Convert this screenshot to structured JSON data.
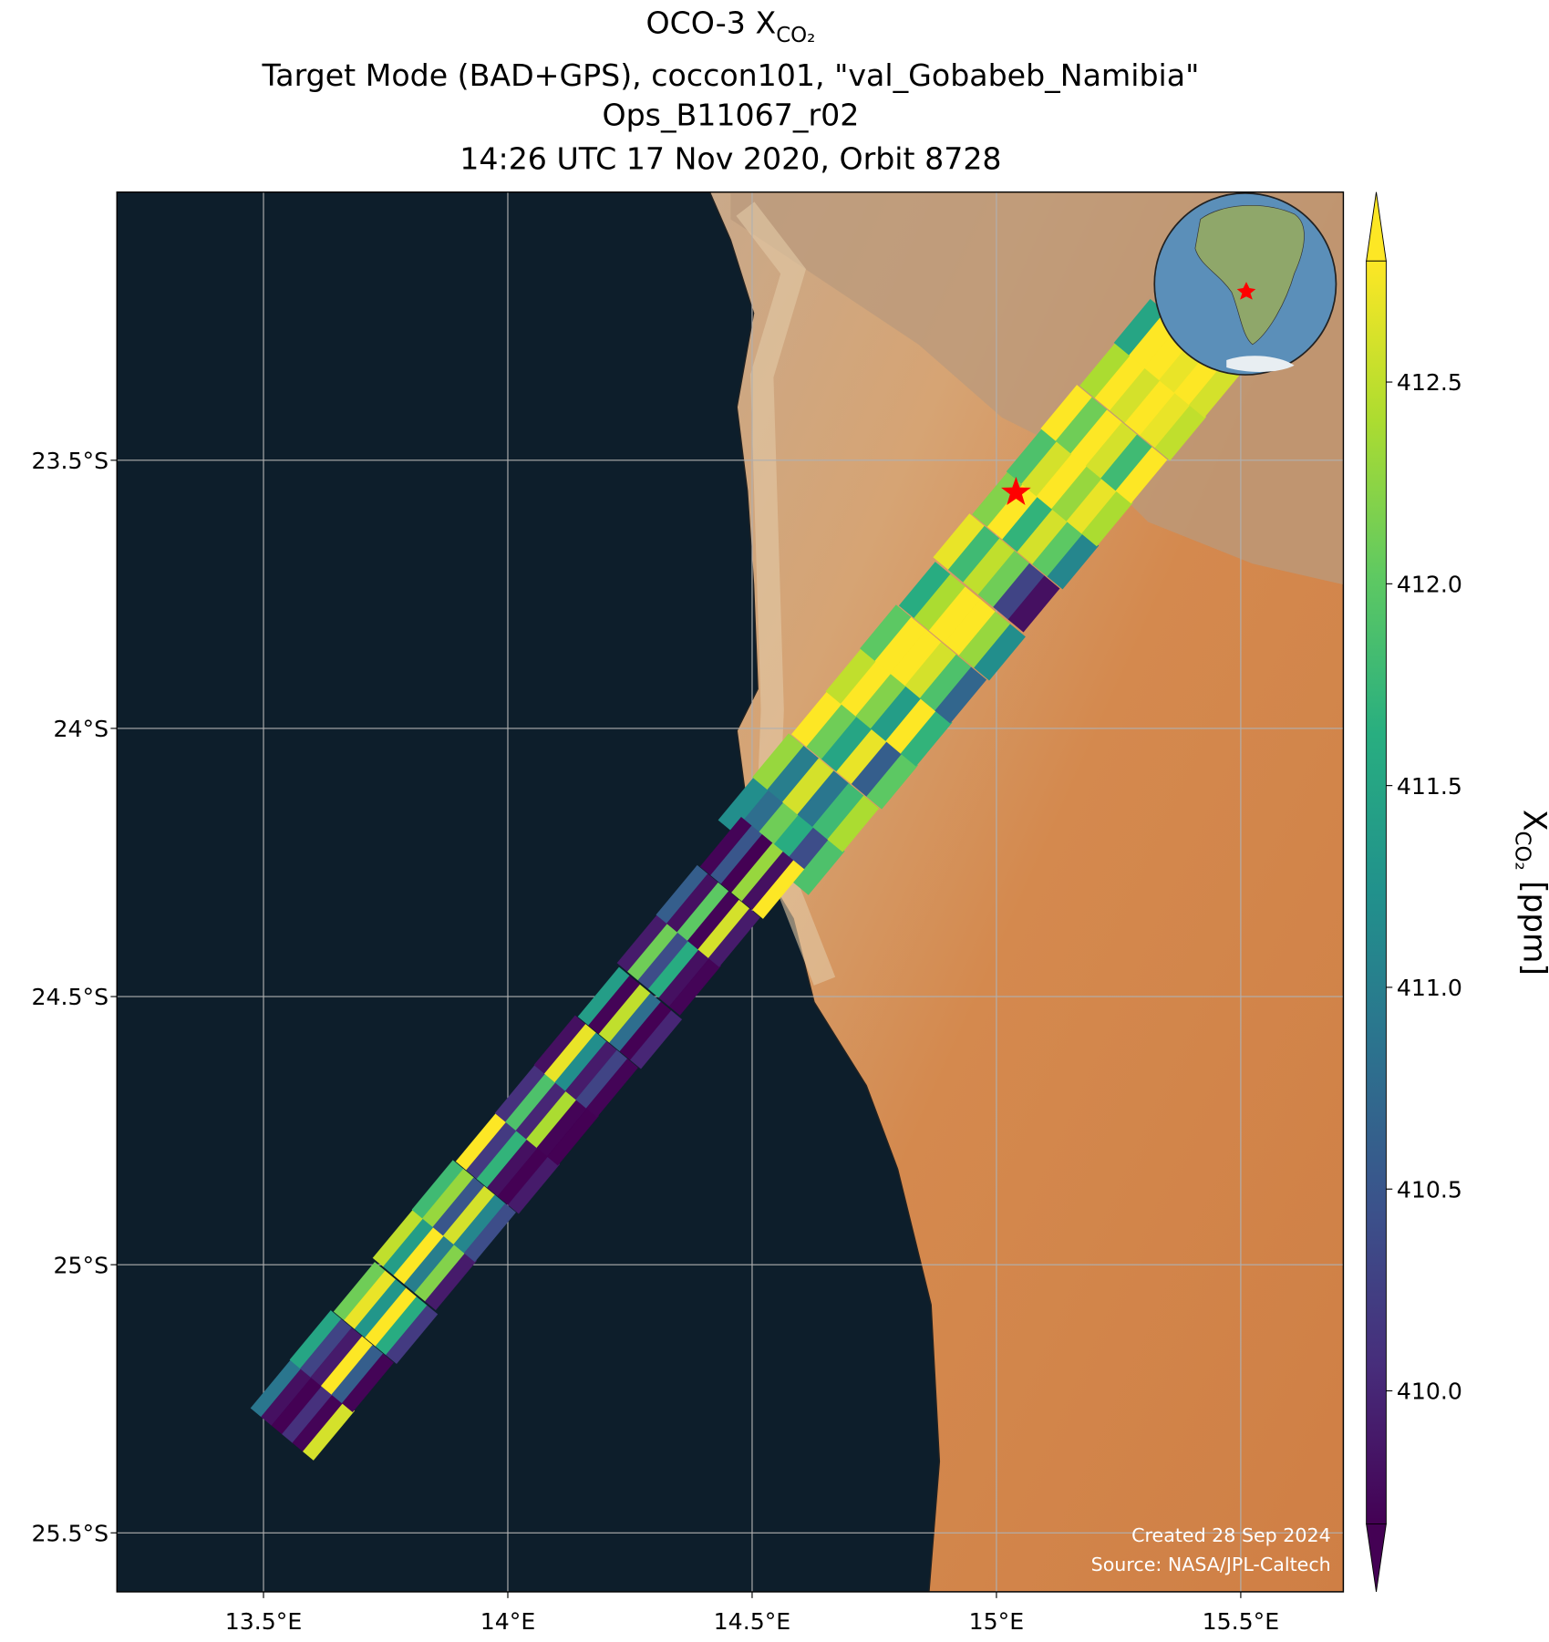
{
  "chart_data": {
    "type": "swath-map",
    "title": {
      "prefix": "OCO-3 X",
      "subscript": "CO₂"
    },
    "subtitle": [
      "Target Mode (BAD+GPS), coccon101, \"val_Gobabeb_Namibia\"",
      "Ops_B11067_r02",
      "14:26 UTC 17 Nov 2020, Orbit 8728"
    ],
    "xlim": [
      13.2,
      15.71
    ],
    "ylim": [
      -25.61,
      -23.0
    ],
    "xticks": [
      {
        "value": 13.5,
        "label": "13.5°E"
      },
      {
        "value": 14,
        "label": "14°E"
      },
      {
        "value": 14.5,
        "label": "14.5°E"
      },
      {
        "value": 15,
        "label": "15°E"
      },
      {
        "value": 15.5,
        "label": "15.5°E"
      }
    ],
    "yticks": [
      {
        "value": -23.5,
        "label": "23.5°S"
      },
      {
        "value": -24,
        "label": "24°S"
      },
      {
        "value": -24.5,
        "label": "24.5°S"
      },
      {
        "value": -25,
        "label": "25°S"
      },
      {
        "value": -25.5,
        "label": "25.5°S"
      }
    ],
    "grid": true,
    "colormap": "viridis",
    "vlim": [
      409.67,
      412.8
    ],
    "colorbar_ticks": [
      {
        "value": 410,
        "label": "410.0"
      },
      410.5,
      {
        "value": 411,
        "label": "411.0"
      },
      411.5,
      {
        "value": 412,
        "label": "412.0"
      },
      412.5
    ],
    "colorbar_label": {
      "symbol": "X",
      "subscript": "CO₂",
      "units": "[ppm]"
    },
    "site": {
      "lon": 15.04,
      "lat": -23.56,
      "color": "#ff0000"
    },
    "swaths": [
      {
        "x": [
          14.56,
          14.63,
          14.71,
          14.78,
          14.85,
          14.93,
          15.0,
          15.08,
          15.15,
          15.22,
          15.3,
          15.37
        ],
        "y": [
          -24.2,
          -24.12,
          -24.04,
          -23.96,
          -23.88,
          -23.8,
          -23.71,
          -23.63,
          -23.55,
          -23.47,
          -23.39,
          -23.31
        ],
        "values": [
          [
            411.2,
            410.8,
            412.1,
            411.6,
            410.4,
            411.9
          ],
          [
            412.3,
            411.0,
            412.6,
            410.9,
            411.8,
            412.4
          ],
          [
            412.8,
            412.1,
            411.5,
            412.7,
            410.6,
            412.0
          ],
          [
            412.5,
            412.9,
            412.2,
            411.4,
            412.8,
            411.7
          ],
          [
            412.0,
            412.8,
            412.9,
            412.6,
            411.9,
            410.7
          ],
          [
            411.6,
            412.4,
            412.8,
            412.9,
            412.3,
            411.2
          ],
          [
            412.7,
            411.8,
            412.5,
            412.1,
            410.3,
            409.8
          ],
          [
            412.2,
            412.9,
            411.7,
            412.6,
            412.0,
            411.1
          ],
          [
            411.9,
            412.6,
            412.8,
            412.3,
            412.7,
            412.4
          ],
          [
            412.8,
            412.1,
            412.9,
            412.6,
            411.8,
            412.9
          ],
          [
            412.4,
            412.9,
            412.6,
            412.8,
            412.7,
            412.5
          ],
          [
            411.5,
            412.8,
            412.9,
            412.7,
            412.9,
            412.6
          ]
        ]
      },
      {
        "x": [
          13.58,
          13.66,
          13.75,
          13.83,
          13.91,
          14.0,
          14.08,
          14.16,
          14.25,
          14.33,
          14.41,
          14.5
        ],
        "y": [
          -25.27,
          -25.18,
          -25.09,
          -24.99,
          -24.9,
          -24.81,
          -24.72,
          -24.63,
          -24.54,
          -24.44,
          -24.35,
          -24.26
        ],
        "values": [
          [
            410.9,
            409.8,
            409.6,
            410.1,
            409.7,
            412.6
          ],
          [
            411.5,
            410.3,
            409.9,
            412.8,
            410.6,
            409.7
          ],
          [
            412.1,
            412.7,
            411.3,
            412.9,
            411.6,
            410.2
          ],
          [
            412.5,
            411.4,
            412.8,
            411.0,
            412.2,
            409.9
          ],
          [
            411.8,
            412.3,
            410.5,
            412.6,
            411.1,
            410.4
          ],
          [
            412.9,
            410.2,
            411.7,
            409.8,
            409.6,
            409.9
          ],
          [
            410.1,
            411.9,
            410.0,
            412.4,
            409.7,
            409.6
          ],
          [
            409.8,
            412.7,
            411.2,
            409.9,
            410.3,
            409.7
          ],
          [
            411.4,
            409.7,
            412.5,
            410.8,
            409.6,
            410.0
          ],
          [
            409.9,
            412.1,
            410.4,
            411.6,
            409.8,
            409.7
          ],
          [
            410.6,
            409.8,
            412.0,
            409.7,
            412.6,
            409.9
          ],
          [
            409.7,
            410.5,
            409.6,
            412.3,
            409.8,
            412.8
          ]
        ]
      }
    ],
    "credits": [
      "Created 28 Sep 2024",
      "Source: NASA/JPL-Caltech"
    ]
  }
}
